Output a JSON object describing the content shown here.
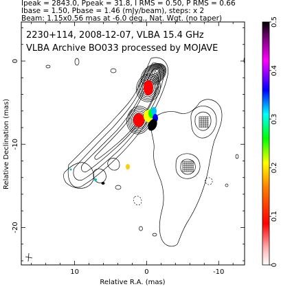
{
  "header": {
    "line1": "Ipeak = 2843.0, Ppeak = 31.8, I RMS = 0.50, P RMS = 0.66",
    "line2": "Ibase = 1.50, Pbase = 1.46 (mJy/beam), steps: x 2",
    "line3": "Beam: 1.15x0.56 mas at -6.0 deg., Nat. Wgt. (no taper)"
  },
  "plot": {
    "annotation1": "2230+114, 2008-12-07, VLBA 15.4 GHz",
    "annotation2": "VLBA Archive BO033 processed by MOJAVE",
    "xlabel": "Relative R.A. (mas)",
    "ylabel": "Relative Declination (mas)"
  },
  "chart_data": {
    "type": "contour",
    "x_ticks": [
      10,
      0,
      -10
    ],
    "x_tick_labels": [
      "10",
      "0",
      "-10"
    ],
    "y_ticks": [
      0,
      -10,
      -20
    ],
    "y_tick_labels": [
      "0",
      "-10",
      "-20"
    ],
    "xlim": [
      17.4,
      -13.6
    ],
    "ylim": [
      -24.5,
      4.7
    ],
    "colorbar": {
      "ticks": [
        0.5,
        0.4,
        0.3,
        0.2,
        0.1,
        0
      ],
      "tick_labels": [
        "0.5",
        "0.4",
        "0.3",
        "0.2",
        "0.1",
        "0"
      ],
      "range": [
        0,
        0.5
      ]
    }
  }
}
